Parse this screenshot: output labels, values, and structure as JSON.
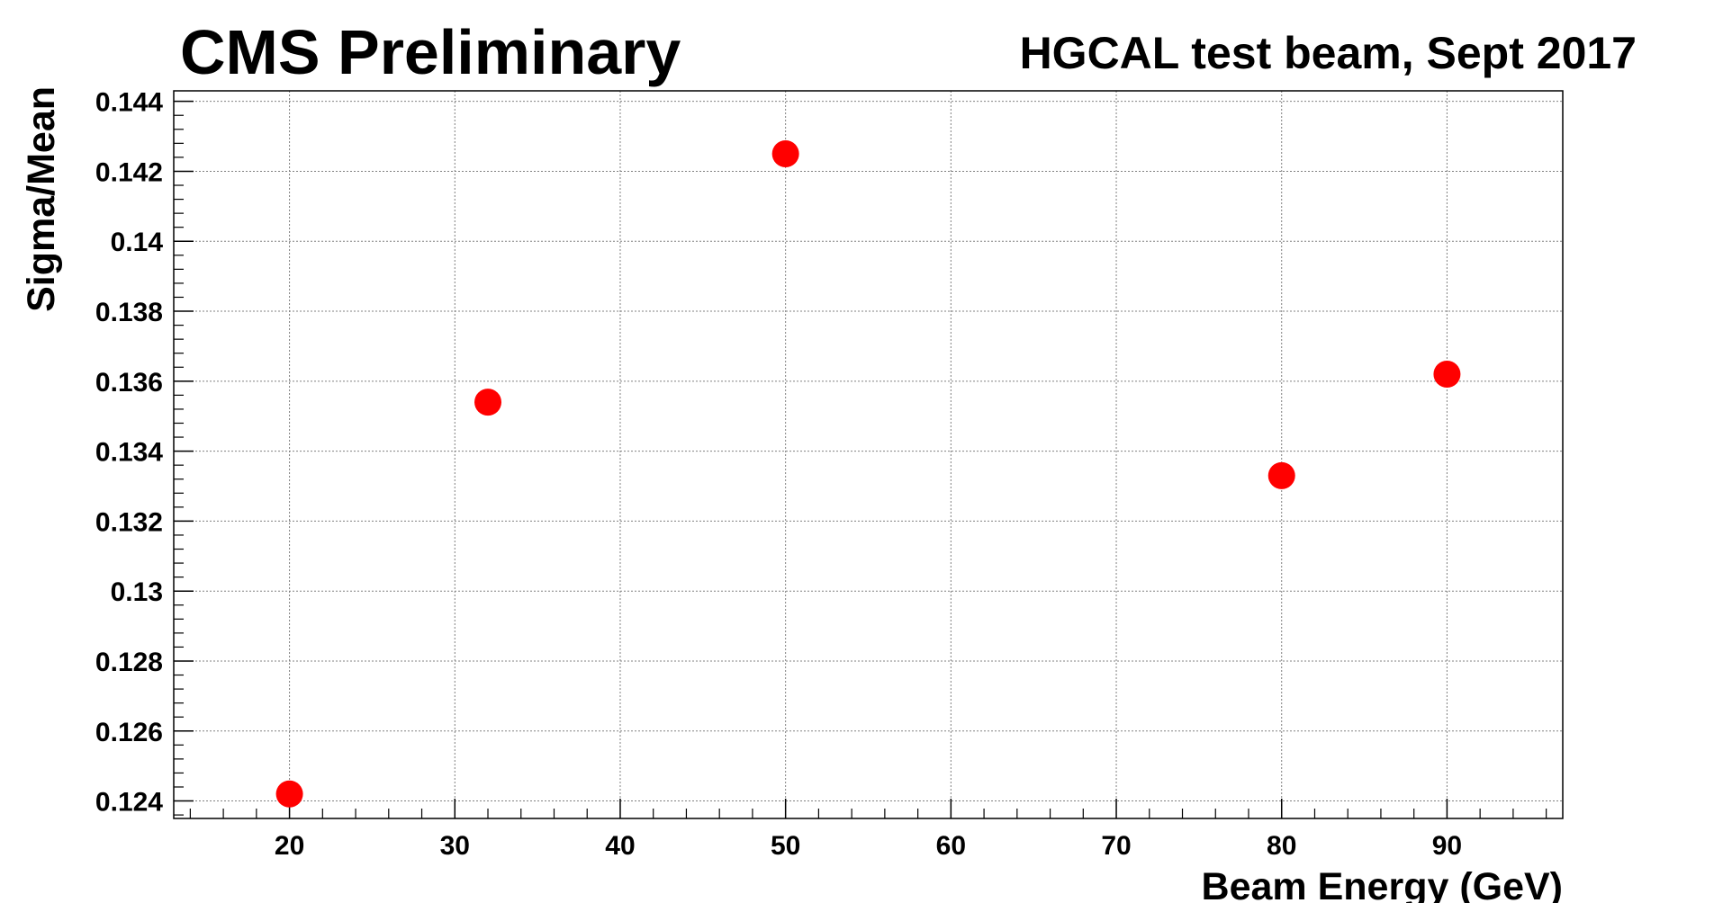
{
  "header": {
    "left_title": "CMS Preliminary",
    "right_title": "HGCAL test beam, Sept 2017"
  },
  "chart_data": {
    "type": "scatter",
    "title": "",
    "xlabel": "Beam Energy (GeV)",
    "ylabel": "Sigma/Mean",
    "xlim": [
      13,
      97
    ],
    "ylim": [
      0.1235,
      0.1443
    ],
    "grid": true,
    "marker_color": "#ff0000",
    "x_ticks": [
      20,
      30,
      40,
      50,
      60,
      70,
      80,
      90
    ],
    "x_tick_labels": [
      "20",
      "30",
      "40",
      "50",
      "60",
      "70",
      "80",
      "90"
    ],
    "y_ticks": [
      0.124,
      0.126,
      0.128,
      0.13,
      0.132,
      0.134,
      0.136,
      0.138,
      0.14,
      0.142,
      0.144
    ],
    "y_tick_labels": [
      "0.124",
      "0.126",
      "0.128",
      "0.13",
      "0.132",
      "0.134",
      "0.136",
      "0.138",
      "0.14",
      "0.142",
      "0.144"
    ],
    "series": [
      {
        "x": [
          20,
          32,
          50,
          80,
          90
        ],
        "y": [
          0.1242,
          0.1354,
          0.1425,
          0.1333,
          0.1362
        ]
      }
    ]
  }
}
